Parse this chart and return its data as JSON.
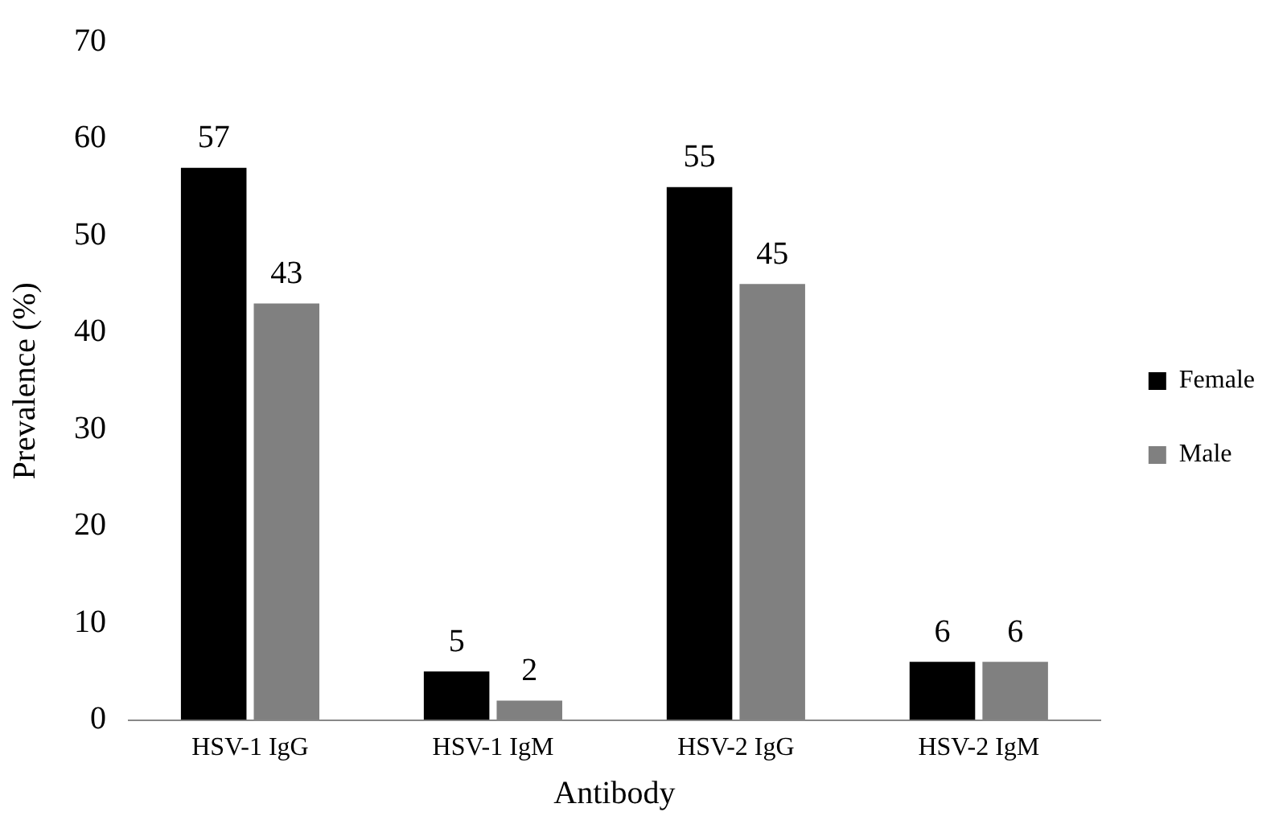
{
  "chart_data": {
    "type": "bar",
    "xlabel": "Antibody",
    "ylabel": "Prevalence (%)",
    "categories": [
      "HSV-1 IgG",
      "HSV-1 IgM",
      "HSV-2 IgG",
      "HSV-2 IgM"
    ],
    "series": [
      {
        "name": "Female",
        "color": "#000000",
        "values": [
          57,
          5,
          55,
          6
        ]
      },
      {
        "name": "Male",
        "color": "#808080",
        "values": [
          43,
          2,
          45,
          6
        ]
      }
    ],
    "ylim": [
      0,
      70
    ],
    "yticks": [
      0,
      10,
      20,
      30,
      40,
      50,
      60,
      70
    ],
    "grid": false,
    "legend": "right",
    "data_labels": true
  }
}
